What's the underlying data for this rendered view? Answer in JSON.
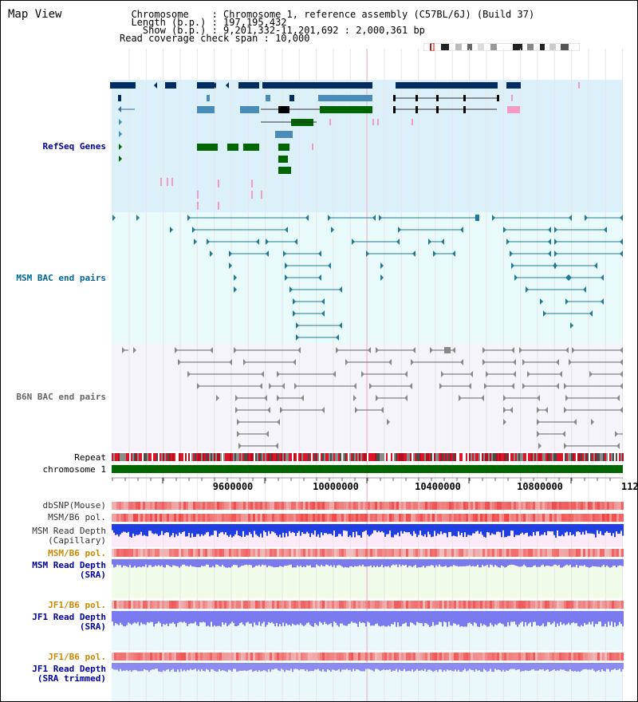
{
  "header": {
    "title": "Map View",
    "info_lines": [
      "  Chromosome    : Chromosome 1, reference assembly (C57BL/6J) (Build 37)",
      "  Length (b.p.) : 197,195,432",
      "    Show (b.p.) : 9,201,332-11,201,692 : 2,000,361 bp",
      "Read coverage check span : 10,000"
    ]
  },
  "ruler": {
    "ticks": [
      "9600000",
      "10000000",
      "10400000",
      "10800000",
      "112"
    ]
  },
  "tracks": {
    "refseq": {
      "label": "RefSeq Genes",
      "color": "#000099"
    },
    "msm_bac": {
      "label": "MSM BAC end pairs",
      "color": "#006699"
    },
    "b6n_bac": {
      "label": "B6N BAC end pairs",
      "color": "#666666"
    },
    "repeat": {
      "label": "Repeat"
    },
    "chromosome": {
      "label": "chromosome 1"
    },
    "dbsnp": {
      "label": "dbSNP(Mouse)"
    },
    "msm_b6_pol_1": {
      "label": "MSM/B6 pol."
    },
    "msm_read_depth_cap": {
      "label": "MSM Read Depth\n(Capillary)"
    },
    "msm_b6_pol_2": {
      "label": "MSM/B6 pol.",
      "color": "#cc8800"
    },
    "msm_read_depth_sra": {
      "label": "MSM Read Depth\n(SRA)",
      "color": "#000099"
    },
    "jf1_b6_pol_1": {
      "label": "JF1/B6 pol.",
      "color": "#cc8800"
    },
    "jf1_read_depth_sra": {
      "label": "JF1 Read Depth\n(SRA)",
      "color": "#000099"
    },
    "jf1_b6_pol_2": {
      "label": "JF1/B6 pol.",
      "color": "#cc8800"
    },
    "jf1_read_depth_trim": {
      "label": "JF1 Read Depth\n(SRA trimmed)",
      "color": "#000099"
    }
  }
}
